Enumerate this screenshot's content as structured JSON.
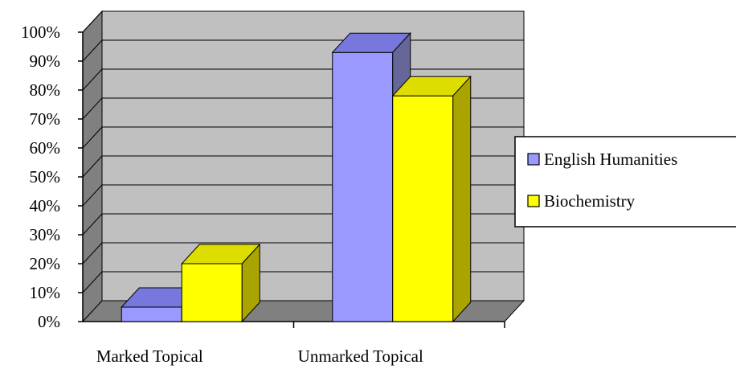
{
  "chart_data": {
    "type": "bar",
    "categories": [
      "Marked Topical",
      "Unmarked Topical"
    ],
    "series": [
      {
        "name": "English Humanities",
        "values": [
          5,
          93
        ],
        "color": "#9999ff",
        "top_color": "#7777dd",
        "side_color": "#666699"
      },
      {
        "name": "Biochemistry",
        "values": [
          20,
          78
        ],
        "color": "#ffff00",
        "top_color": "#dddd00",
        "side_color": "#aaa400"
      }
    ],
    "ylim": [
      0,
      100
    ],
    "yticks": [
      0,
      10,
      20,
      30,
      40,
      50,
      60,
      70,
      80,
      90,
      100
    ],
    "ytick_format": "percent",
    "grid": true,
    "three_d": true,
    "legend_position": "right",
    "back_wall_color": "#c0c0c0",
    "side_wall_color": "#808080",
    "floor_color": "#808080",
    "title": "",
    "xlabel": "",
    "ylabel": ""
  }
}
